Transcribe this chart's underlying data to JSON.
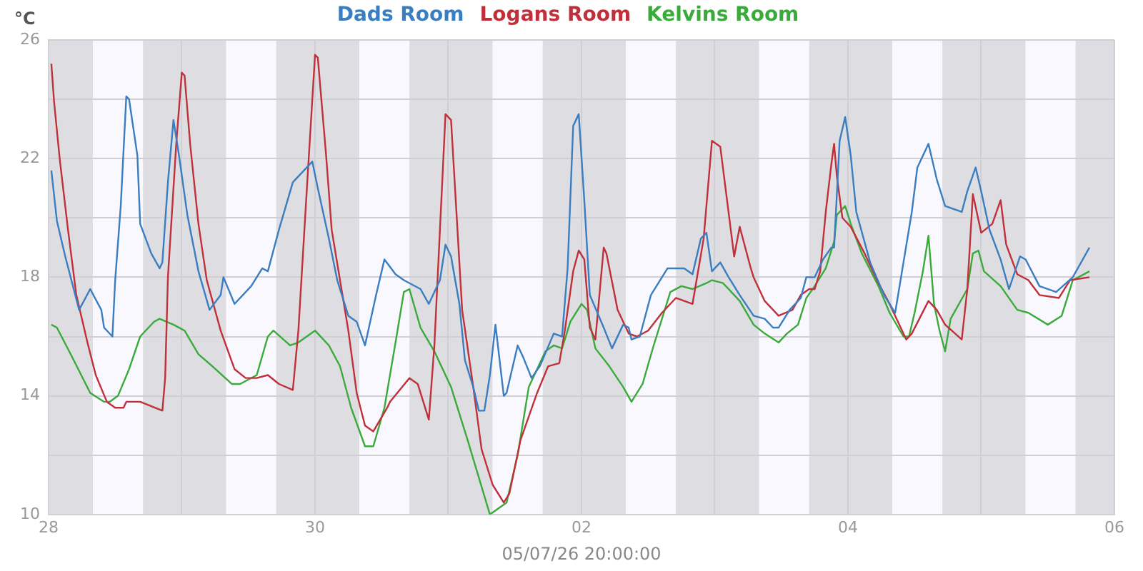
{
  "chart_data": {
    "type": "line",
    "xlabel": "05/07/26 20:00:00",
    "ylabel": "°C",
    "legend": "top",
    "grid": true,
    "marker": "none",
    "line_style": "solid",
    "xlim": [
      "--06-28",
      "--07-06"
    ],
    "xticks": [
      {
        "value": "--06-28",
        "label": "28"
      },
      {
        "value": "--06-29",
        "label": null
      },
      {
        "value": "--06-30",
        "label": "30"
      },
      {
        "value": "--07-01",
        "label": null
      },
      {
        "value": "--07-02",
        "label": "02"
      },
      {
        "value": "--07-03",
        "label": null
      },
      {
        "value": "--07-04",
        "label": "04"
      },
      {
        "value": "--07-05",
        "label": null
      },
      {
        "value": "--07-06",
        "label": "06"
      }
    ],
    "ylim": [
      10,
      26
    ],
    "yticks": [
      10,
      {
        "value": 12,
        "label": null
      },
      14,
      {
        "value": 16,
        "label": null
      },
      18,
      {
        "value": 20,
        "label": null
      },
      22,
      {
        "value": 24,
        "label": null
      },
      26
    ],
    "bands": [
      {
        "axis": "x",
        "from": "--06-28T00:00",
        "to": "--06-28T08:00",
        "color": "#dedee2"
      },
      {
        "axis": "x",
        "from": "--06-28T08:00",
        "to": "--06-28T17:00",
        "color": "#faf8ff"
      },
      {
        "axis": "x",
        "from": "--06-28T17:00",
        "to": "--06-29T08:00",
        "color": "#dedee2"
      },
      {
        "axis": "x",
        "from": "--06-29T08:00",
        "to": "--06-29T17:00",
        "color": "#faf8ff"
      },
      {
        "axis": "x",
        "from": "--06-29T17:00",
        "to": "--06-30T08:00",
        "color": "#dedee2"
      },
      {
        "axis": "x",
        "from": "--06-30T08:00",
        "to": "--06-30T17:00",
        "color": "#faf8ff"
      },
      {
        "axis": "x",
        "from": "--06-30T17:00",
        "to": "--07-01T08:00",
        "color": "#dedee2"
      },
      {
        "axis": "x",
        "from": "--07-01T08:00",
        "to": "--07-01T17:00",
        "color": "#faf8ff"
      },
      {
        "axis": "x",
        "from": "--07-01T17:00",
        "to": "--07-02T08:00",
        "color": "#dedee2"
      },
      {
        "axis": "x",
        "from": "--07-02T08:00",
        "to": "--07-02T17:00",
        "color": "#faf8ff"
      },
      {
        "axis": "x",
        "from": "--07-02T17:00",
        "to": "--07-03T08:00",
        "color": "#dedee2"
      },
      {
        "axis": "x",
        "from": "--07-03T08:00",
        "to": "--07-03T17:00",
        "color": "#faf8ff"
      },
      {
        "axis": "x",
        "from": "--07-03T17:00",
        "to": "--07-04T08:00",
        "color": "#dedee2"
      },
      {
        "axis": "x",
        "from": "--07-04T08:00",
        "to": "--07-04T17:00",
        "color": "#faf8ff"
      },
      {
        "axis": "x",
        "from": "--07-04T17:00",
        "to": "--07-05T08:00",
        "color": "#dedee2"
      },
      {
        "axis": "x",
        "from": "--07-05T08:00",
        "to": "--07-05T17:00",
        "color": "#faf8ff"
      },
      {
        "axis": "x",
        "from": "--07-05T17:00",
        "to": "--07-06T00:00",
        "color": "#dedee2"
      }
    ],
    "series": [
      {
        "name": "Dads Room",
        "color": "#3a7dc0",
        "x": [
          "--06-28T00:30",
          "--06-28T01:30",
          "--06-28T03:00",
          "--06-28T05:30",
          "--06-28T07:30",
          "--06-28T09:30",
          "--06-28T10:00",
          "--06-28T11:30",
          "--06-28T12:00",
          "--06-28T13:00",
          "--06-28T14:00",
          "--06-28T14:30",
          "--06-28T16:00",
          "--06-28T16:30",
          "--06-28T18:30",
          "--06-28T20:00",
          "--06-28T20:30",
          "--06-28T21:30",
          "--06-28T22:30",
          "--06-28T23:30",
          "--06-29T01:00",
          "--06-29T03:00",
          "--06-29T05:00",
          "--06-29T07:00",
          "--06-29T07:30",
          "--06-29T09:30",
          "--06-29T12:30",
          "--06-29T14:30",
          "--06-29T15:30",
          "--06-29T17:30",
          "--06-29T20:00",
          "--06-29T23:30",
          "--06-30T00:30",
          "--06-30T02:30",
          "--06-30T04:00",
          "--06-30T06:00",
          "--06-30T07:30",
          "--06-30T09:00",
          "--06-30T11:00",
          "--06-30T12:30",
          "--06-30T14:30",
          "--06-30T16:00",
          "--06-30T19:00",
          "--06-30T20:30",
          "--06-30T22:30",
          "--06-30T23:30",
          "--07-01T00:30",
          "--07-01T02:00",
          "--07-01T03:00",
          "--07-01T04:30",
          "--07-01T05:30",
          "--07-01T06:30",
          "--07-01T07:30",
          "--07-01T08:30",
          "--07-01T10:00",
          "--07-01T10:30",
          "--07-01T12:30",
          "--07-01T13:30",
          "--07-01T15:00",
          "--07-01T16:30",
          "--07-01T19:00",
          "--07-01T20:30",
          "--07-01T21:30",
          "--07-01T22:30",
          "--07-01T23:30",
          "--07-02T00:30",
          "--07-02T01:30",
          "--07-02T04:00",
          "--07-02T05:30",
          "--07-02T07:30",
          "--07-02T08:30",
          "--07-02T09:00",
          "--07-02T10:30",
          "--07-02T12:30",
          "--07-02T15:30",
          "--07-02T18:30",
          "--07-02T20:00",
          "--07-02T21:30",
          "--07-02T22:30",
          "--07-02T23:30",
          "--07-03T01:00",
          "--07-03T02:30",
          "--07-03T04:30",
          "--07-03T07:00",
          "--07-03T09:00",
          "--07-03T10:30",
          "--07-03T11:30",
          "--07-03T13:30",
          "--07-03T15:30",
          "--07-03T16:30",
          "--07-03T18:00",
          "--07-03T19:30",
          "--07-03T21:00",
          "--07-03T21:30",
          "--07-03T22:30",
          "--07-03T23:30",
          "--07-04T00:30",
          "--07-04T01:30",
          "--07-04T04:00",
          "--07-04T06:30",
          "--07-04T08:30",
          "--07-04T10:00",
          "--07-04T11:30",
          "--07-04T12:30",
          "--07-04T14:30",
          "--07-04T16:00",
          "--07-04T17:30",
          "--07-04T20:30",
          "--07-04T21:30",
          "--07-04T23:00",
          "--07-05T00:00",
          "--07-05T01:30",
          "--07-05T03:30",
          "--07-05T05:00",
          "--07-05T07:00",
          "--07-05T08:00",
          "--07-05T10:30",
          "--07-05T13:30",
          "--07-05T16:30",
          "--07-05T19:30"
        ],
        "values": [
          21.6,
          19.9,
          18.7,
          16.9,
          17.6,
          16.9,
          16.3,
          16.0,
          17.9,
          20.4,
          24.1,
          24.0,
          22.1,
          19.8,
          18.8,
          18.3,
          18.5,
          21.2,
          23.3,
          22.1,
          20.1,
          18.2,
          16.9,
          17.4,
          18.0,
          17.1,
          17.7,
          18.3,
          18.2,
          19.6,
          21.2,
          21.9,
          21.0,
          19.3,
          17.9,
          16.7,
          16.5,
          15.7,
          17.4,
          18.6,
          18.1,
          17.9,
          17.6,
          17.1,
          17.9,
          19.1,
          18.7,
          17.1,
          15.2,
          14.3,
          13.5,
          13.5,
          14.7,
          16.4,
          14.0,
          14.1,
          15.7,
          15.3,
          14.6,
          15.0,
          16.1,
          16.0,
          18.3,
          23.1,
          23.5,
          20.6,
          17.4,
          16.3,
          15.6,
          16.4,
          16.3,
          15.9,
          16.0,
          17.4,
          18.3,
          18.3,
          18.1,
          19.3,
          19.5,
          18.2,
          18.5,
          18.0,
          17.4,
          16.7,
          16.6,
          16.3,
          16.3,
          16.9,
          17.3,
          18.0,
          18.0,
          18.6,
          19.0,
          19.0,
          22.6,
          23.4,
          22.1,
          20.2,
          18.5,
          17.4,
          16.8,
          18.5,
          20.2,
          21.7,
          22.5,
          21.3,
          20.4,
          20.2,
          20.9,
          21.7,
          20.9,
          19.6,
          18.6,
          17.6,
          18.7,
          18.6,
          17.7,
          17.5,
          18.0,
          19.0
        ]
      },
      {
        "name": "Logans Room",
        "color": "#c0303a",
        "x": [
          "--06-28T00:30",
          "--06-28T01:00",
          "--06-28T02:00",
          "--06-28T03:30",
          "--06-28T05:00",
          "--06-28T07:00",
          "--06-28T08:30",
          "--06-28T10:30",
          "--06-28T12:00",
          "--06-28T13:30",
          "--06-28T14:00",
          "--06-28T16:30",
          "--06-28T20:30",
          "--06-28T21:00",
          "--06-28T21:30",
          "--06-28T23:00",
          "--06-29T00:00",
          "--06-29T00:30",
          "--06-29T01:30",
          "--06-29T03:00",
          "--06-29T04:30",
          "--06-29T07:00",
          "--06-29T09:30",
          "--06-29T11:30",
          "--06-29T13:30",
          "--06-29T15:30",
          "--06-29T17:30",
          "--06-29T20:00",
          "--06-29T21:00",
          "--06-29T22:30",
          "--06-30T00:00",
          "--06-30T00:30",
          "--06-30T02:00",
          "--06-30T03:00",
          "--06-30T06:00",
          "--06-30T07:30",
          "--06-30T09:00",
          "--06-30T10:30",
          "--06-30T13:00",
          "--06-30T13:30",
          "--06-30T17:00",
          "--06-30T18:30",
          "--06-30T20:30",
          "--06-30T21:30",
          "--06-30T22:30",
          "--06-30T23:30",
          "--07-01T00:30",
          "--07-01T01:30",
          "--07-01T02:30",
          "--07-01T04:30",
          "--07-01T06:00",
          "--07-01T08:00",
          "--07-01T10:00",
          "--07-01T11:00",
          "--07-01T13:00",
          "--07-01T16:00",
          "--07-01T18:00",
          "--07-01T20:00",
          "--07-01T21:00",
          "--07-01T22:30",
          "--07-01T23:30",
          "--07-02T00:30",
          "--07-02T01:30",
          "--07-02T02:30",
          "--07-02T04:00",
          "--07-02T04:30",
          "--07-02T06:30",
          "--07-02T08:30",
          "--07-02T10:00",
          "--07-02T12:00",
          "--07-02T14:30",
          "--07-02T17:00",
          "--07-02T20:00",
          "--07-02T22:00",
          "--07-02T23:30",
          "--07-03T01:00",
          "--07-03T03:30",
          "--07-03T04:30",
          "--07-03T06:30",
          "--07-03T07:00",
          "--07-03T09:00",
          "--07-03T11:30",
          "--07-03T14:00",
          "--07-03T15:30",
          "--07-03T17:00",
          "--07-03T18:00",
          "--07-03T19:00",
          "--07-03T20:00",
          "--07-03T21:00",
          "--07-03T21:30",
          "--07-03T22:00",
          "--07-03T23:00",
          "--07-04T00:30",
          "--07-04T03:00",
          "--07-04T05:30",
          "--07-04T07:30",
          "--07-04T10:30",
          "--07-04T11:30",
          "--07-04T14:30",
          "--07-04T16:00",
          "--07-04T17:30",
          "--07-04T20:30",
          "--07-04T21:30",
          "--07-04T22:30",
          "--07-05T00:00",
          "--07-05T02:00",
          "--07-05T03:30",
          "--07-05T04:30",
          "--07-05T06:30",
          "--07-05T08:30",
          "--07-05T10:30",
          "--07-05T14:00",
          "--07-05T16:00",
          "--07-05T19:30"
        ],
        "values": [
          25.2,
          23.9,
          22.0,
          19.6,
          17.4,
          15.8,
          14.7,
          13.8,
          13.6,
          13.6,
          13.8,
          13.8,
          13.5,
          14.6,
          18.0,
          22.5,
          24.9,
          24.8,
          22.5,
          19.8,
          17.9,
          16.2,
          14.9,
          14.6,
          14.6,
          14.7,
          14.4,
          14.2,
          16.2,
          20.9,
          25.5,
          25.4,
          22.1,
          19.6,
          16.2,
          14.1,
          13.0,
          12.8,
          13.6,
          13.8,
          14.6,
          14.4,
          13.2,
          15.7,
          19.6,
          23.5,
          23.3,
          20.1,
          16.9,
          14.3,
          12.2,
          11.0,
          10.4,
          10.7,
          12.5,
          14.1,
          15.0,
          15.1,
          16.2,
          18.2,
          18.9,
          18.6,
          16.3,
          15.9,
          19.0,
          18.8,
          16.9,
          16.1,
          16.0,
          16.2,
          16.8,
          17.3,
          17.1,
          19.3,
          22.6,
          22.4,
          18.7,
          19.7,
          18.3,
          18.0,
          17.2,
          16.7,
          16.9,
          17.4,
          17.6,
          17.6,
          18.2,
          20.2,
          21.8,
          22.5,
          21.4,
          20.0,
          19.7,
          18.8,
          17.8,
          17.1,
          15.9,
          16.1,
          17.2,
          16.9,
          16.4,
          15.9,
          17.6,
          20.8,
          19.5,
          19.8,
          20.6,
          19.1,
          18.1,
          17.9,
          17.4,
          17.3,
          17.9,
          18.0
        ]
      },
      {
        "name": "Kelvins Room",
        "color": "#3aaa3a",
        "x": [
          "--06-28T00:30",
          "--06-28T01:30",
          "--06-28T04:00",
          "--06-28T07:30",
          "--06-28T10:00",
          "--06-28T11:00",
          "--06-28T12:30",
          "--06-28T14:30",
          "--06-28T16:30",
          "--06-28T19:00",
          "--06-28T20:00",
          "--06-28T22:30",
          "--06-29T00:30",
          "--06-29T03:00",
          "--06-29T05:30",
          "--06-29T09:00",
          "--06-29T10:30",
          "--06-29T13:30",
          "--06-29T15:30",
          "--06-29T16:30",
          "--06-29T19:30",
          "--06-29T21:00",
          "--06-30T00:00",
          "--06-30T02:30",
          "--06-30T04:30",
          "--06-30T06:30",
          "--06-30T09:00",
          "--06-30T10:30",
          "--06-30T12:30",
          "--06-30T14:30",
          "--06-30T16:00",
          "--06-30T17:00",
          "--06-30T19:00",
          "--06-30T21:30",
          "--07-01T00:30",
          "--07-01T03:30",
          "--07-01T07:30",
          "--07-01T09:00",
          "--07-01T10:30",
          "--07-01T12:30",
          "--07-01T14:30",
          "--07-01T17:30",
          "--07-01T19:00",
          "--07-01T20:30",
          "--07-01T22:00",
          "--07-02T00:00",
          "--07-02T01:00",
          "--07-02T02:30",
          "--07-02T05:00",
          "--07-02T07:30",
          "--07-02T09:00",
          "--07-02T11:00",
          "--07-02T13:00",
          "--07-02T16:00",
          "--07-02T18:00",
          "--07-02T20:00",
          "--07-02T22:30",
          "--07-02T23:30",
          "--07-03T01:30",
          "--07-03T04:30",
          "--07-03T07:00",
          "--07-03T09:00",
          "--07-03T11:30",
          "--07-03T13:00",
          "--07-03T15:00",
          "--07-03T16:30",
          "--07-03T18:00",
          "--07-03T20:00",
          "--07-03T21:30",
          "--07-03T22:00",
          "--07-03T23:30",
          "--07-04T00:30",
          "--07-04T02:30",
          "--07-04T05:30",
          "--07-04T07:30",
          "--07-04T10:00",
          "--07-04T11:00",
          "--07-04T12:00",
          "--07-04T13:30",
          "--07-04T14:30",
          "--07-04T15:30",
          "--07-04T16:30",
          "--07-04T17:30",
          "--07-04T18:30",
          "--07-04T21:30",
          "--07-04T22:30",
          "--07-04T23:30",
          "--07-05T00:30",
          "--07-05T03:30",
          "--07-05T06:30",
          "--07-05T08:30",
          "--07-05T12:00",
          "--07-05T14:30",
          "--07-05T16:30",
          "--07-05T19:30"
        ],
        "values": [
          16.4,
          16.3,
          15.4,
          14.1,
          13.8,
          13.8,
          14.0,
          14.9,
          16.0,
          16.5,
          16.6,
          16.4,
          16.2,
          15.4,
          15.0,
          14.4,
          14.4,
          14.7,
          16.0,
          16.2,
          15.7,
          15.8,
          16.2,
          15.7,
          15.0,
          13.6,
          12.3,
          12.3,
          13.6,
          15.8,
          17.5,
          17.6,
          16.3,
          15.5,
          14.3,
          12.5,
          10.0,
          10.2,
          10.4,
          12.0,
          14.3,
          15.5,
          15.7,
          15.6,
          16.5,
          17.1,
          16.9,
          15.6,
          15.0,
          14.3,
          13.8,
          14.4,
          15.7,
          17.5,
          17.7,
          17.6,
          17.8,
          17.9,
          17.8,
          17.2,
          16.4,
          16.1,
          15.8,
          16.1,
          16.4,
          17.3,
          17.7,
          18.3,
          19.2,
          20.1,
          20.4,
          19.8,
          18.8,
          17.7,
          16.8,
          16.0,
          16.0,
          16.8,
          18.2,
          19.4,
          17.1,
          16.2,
          15.5,
          16.6,
          17.6,
          18.8,
          18.9,
          18.2,
          17.7,
          16.9,
          16.8,
          16.4,
          16.7,
          17.9,
          18.2
        ]
      }
    ]
  }
}
